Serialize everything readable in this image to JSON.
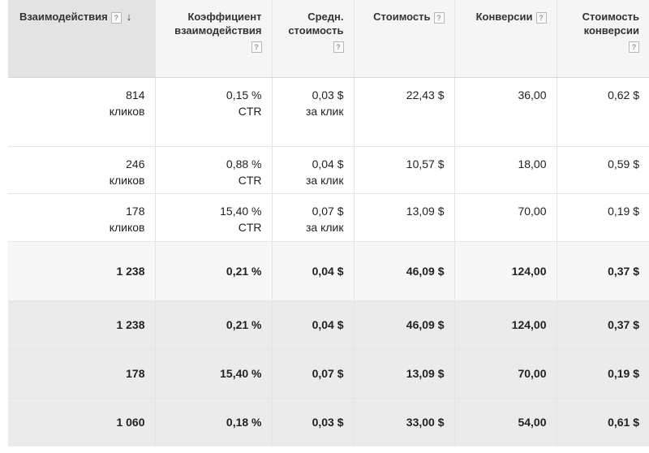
{
  "headers": {
    "interactions": {
      "label": "Взаимодействия",
      "help": "?",
      "sort": "↓"
    },
    "rate": {
      "line1": "Коэффициент",
      "line2": "взаимодействия",
      "help": "?"
    },
    "avg_cost": {
      "line1": "Средн.",
      "line2": "стоимость",
      "help": "?"
    },
    "cost": {
      "label": "Стоимость",
      "help": "?"
    },
    "conversions": {
      "label": "Конверсии",
      "help": "?"
    },
    "cost_per_conv": {
      "line1": "Стоимость",
      "line2": "конверсии",
      "help": "?"
    }
  },
  "rows": [
    {
      "interactions": "814",
      "interactions_unit": "кликов",
      "rate": "0,15 %",
      "rate_unit": "CTR",
      "avg_cost": "0,03 $",
      "avg_cost_unit": "за клик",
      "cost": "22,43 $",
      "conversions": "36,00",
      "cost_per_conv": "0,62 $"
    },
    {
      "interactions": "246",
      "interactions_unit": "кликов",
      "rate": "0,88 %",
      "rate_unit": "CTR",
      "avg_cost": "0,04 $",
      "avg_cost_unit": "за клик",
      "cost": "10,57 $",
      "conversions": "18,00",
      "cost_per_conv": "0,59 $"
    },
    {
      "interactions": "178",
      "interactions_unit": "кликов",
      "rate": "15,40 %",
      "rate_unit": "CTR",
      "avg_cost": "0,07 $",
      "avg_cost_unit": "за клик",
      "cost": "13,09 $",
      "conversions": "70,00",
      "cost_per_conv": "0,19 $"
    }
  ],
  "summary": [
    {
      "interactions": "1 238",
      "rate": "0,21 %",
      "avg_cost": "0,04 $",
      "cost": "46,09 $",
      "conversions": "124,00",
      "cost_per_conv": "0,37 $"
    },
    {
      "interactions": "1 238",
      "rate": "0,21 %",
      "avg_cost": "0,04 $",
      "cost": "46,09 $",
      "conversions": "124,00",
      "cost_per_conv": "0,37 $"
    },
    {
      "interactions": "178",
      "rate": "15,40 %",
      "avg_cost": "0,07 $",
      "cost": "13,09 $",
      "conversions": "70,00",
      "cost_per_conv": "0,19 $"
    },
    {
      "interactions": "1 060",
      "rate": "0,18 %",
      "avg_cost": "0,03 $",
      "cost": "33,00 $",
      "conversions": "54,00",
      "cost_per_conv": "0,61 $"
    }
  ]
}
